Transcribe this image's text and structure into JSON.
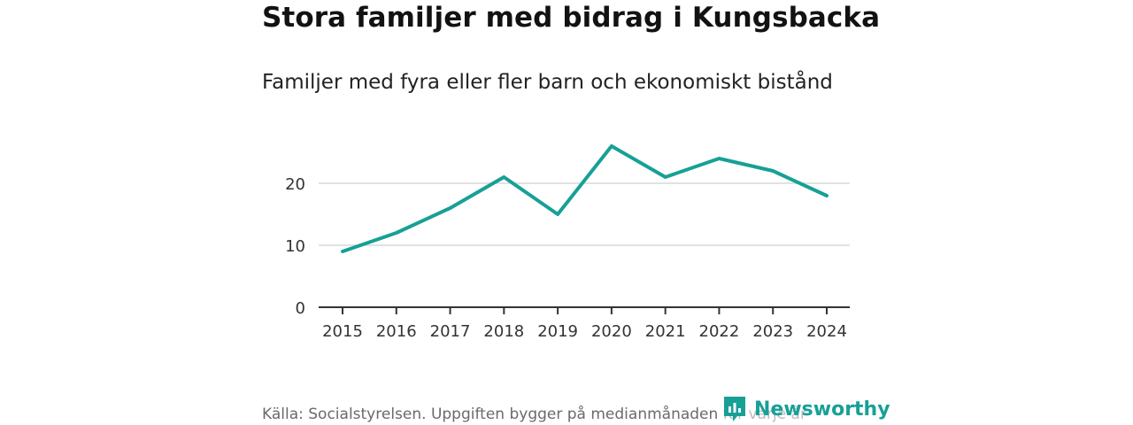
{
  "header": {
    "title": "Stora familjer med bidrag i Kungsbacka",
    "subtitle": "Familjer med fyra eller fler barn och ekonomiskt bistånd"
  },
  "footer": {
    "source": "Källa: Socialstyrelsen. Uppgiften bygger på medianmånaden för varje år",
    "brand": "Newsworthy"
  },
  "colors": {
    "series": "#17a096",
    "brand": "#17a096",
    "grid": "#d9d9d9",
    "axis": "#333333"
  },
  "chart_data": {
    "type": "line",
    "title": "Stora familjer med bidrag i Kungsbacka",
    "subtitle": "Familjer med fyra eller fler barn och ekonomiskt bistånd",
    "xlabel": "",
    "ylabel": "",
    "x": [
      "2015",
      "2016",
      "2017",
      "2018",
      "2019",
      "2020",
      "2021",
      "2022",
      "2023",
      "2024"
    ],
    "series": [
      {
        "name": "Familjer med fyra eller fler barn och ekonomiskt bistånd",
        "values": [
          9,
          12,
          16,
          21,
          15,
          26,
          21,
          24,
          22,
          18
        ]
      }
    ],
    "yticks": [
      0,
      10,
      20
    ],
    "ylim": [
      0,
      28
    ],
    "grid": true,
    "legend": "none"
  }
}
